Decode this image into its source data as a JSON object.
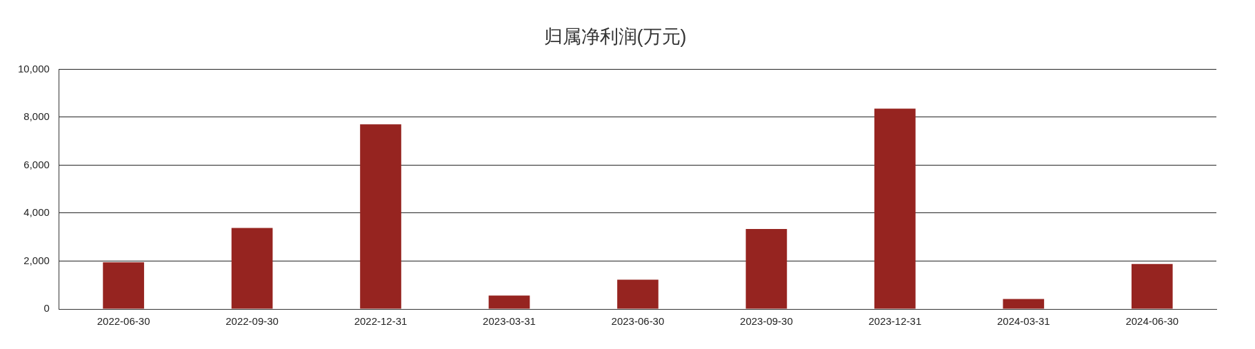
{
  "chart_data": {
    "type": "bar",
    "title": "归属净利润(万元)",
    "categories": [
      "2022-06-30",
      "2022-09-30",
      "2022-12-31",
      "2023-03-31",
      "2023-06-30",
      "2023-09-30",
      "2023-12-31",
      "2024-03-31",
      "2024-06-30"
    ],
    "values": [
      1950,
      3380,
      7700,
      560,
      1220,
      3340,
      8360,
      420,
      1880
    ],
    "color": "#962420",
    "ylim": [
      0,
      10000
    ],
    "yticks": [
      0,
      {
        "value": 2000,
        "label": "2,000"
      },
      {
        "value": 4000,
        "label": "4,000"
      },
      {
        "value": 6000,
        "label": "6,000"
      },
      {
        "value": 8000,
        "label": "8,000"
      },
      {
        "value": 10000,
        "label": "10,000"
      }
    ],
    "grid": "y",
    "legend": false
  }
}
